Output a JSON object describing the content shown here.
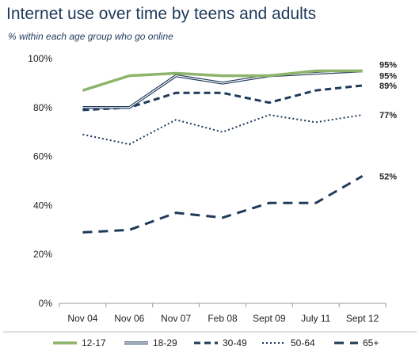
{
  "chart_data": {
    "type": "line",
    "title": "Internet use over time by teens and adults",
    "subtitle": "% within each age group who go online",
    "categories": [
      "Nov 04",
      "Nov 06",
      "Nov 07",
      "Feb 08",
      "Sept 09",
      "July 11",
      "Sept 12"
    ],
    "ylim": [
      0,
      100
    ],
    "yticks": [
      "0%",
      "20%",
      "40%",
      "60%",
      "80%",
      "100%"
    ],
    "ytick_values": [
      0,
      20,
      40,
      60,
      80,
      100
    ],
    "grid": false,
    "legend_placement": "bottom",
    "series": [
      {
        "name": "12-17",
        "values": [
          87,
          93,
          94,
          93,
          93,
          95,
          95
        ],
        "end_label": "95%",
        "color": "#8db46a",
        "style": "solid-thick"
      },
      {
        "name": "18-29",
        "values": [
          80,
          80,
          93,
          90,
          93,
          94,
          95
        ],
        "end_label": "95%",
        "color": "#1f3a5a",
        "style": "double"
      },
      {
        "name": "30-49",
        "values": [
          79,
          80,
          86,
          86,
          82,
          87,
          89
        ],
        "end_label": "89%",
        "color": "#1f3a5a",
        "style": "dashed"
      },
      {
        "name": "50-64",
        "values": [
          69,
          65,
          75,
          70,
          77,
          74,
          77
        ],
        "end_label": "77%",
        "color": "#1f3a5a",
        "style": "dotted"
      },
      {
        "name": "65+",
        "values": [
          29,
          30,
          37,
          35,
          41,
          41,
          52
        ],
        "end_label": "52%",
        "color": "#1f3a5a",
        "style": "long-dashed"
      }
    ]
  }
}
